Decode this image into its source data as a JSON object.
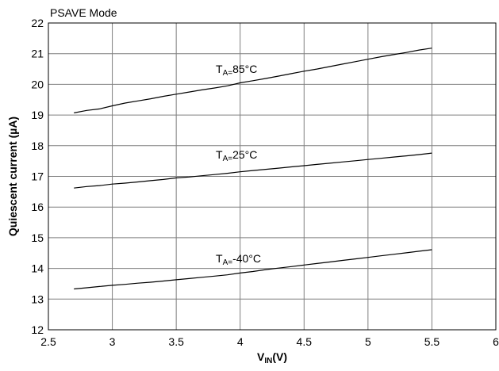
{
  "chart_data": {
    "type": "line",
    "title": "PSAVE Mode",
    "xlabel": {
      "main": "V",
      "sub": "IN",
      "rest": "(V)"
    },
    "ylabel": "Quiescent current (µA)",
    "xlim": [
      2.5,
      6
    ],
    "ylim": [
      12,
      22
    ],
    "x_ticks": [
      2.5,
      3,
      3.5,
      4,
      4.5,
      5,
      5.5,
      6
    ],
    "x_tick_labels": [
      "2.5",
      "3",
      "3.5",
      "4",
      "4.5",
      "5",
      "5.5",
      "6"
    ],
    "y_ticks": [
      12,
      13,
      14,
      15,
      16,
      17,
      18,
      19,
      20,
      21,
      22
    ],
    "y_tick_labels": [
      "12",
      "13",
      "14",
      "15",
      "16",
      "17",
      "18",
      "19",
      "20",
      "21",
      "22"
    ],
    "grid": true,
    "legend": "none",
    "line_color": "#000000",
    "grid_color": "#7f7f7f",
    "x": [
      2.7,
      2.8,
      2.9,
      3.0,
      3.1,
      3.2,
      3.3,
      3.4,
      3.5,
      3.6,
      3.7,
      3.8,
      3.9,
      4.0,
      4.1,
      4.2,
      4.3,
      4.4,
      4.5,
      4.6,
      4.7,
      4.8,
      4.9,
      5.0,
      5.1,
      5.2,
      5.3,
      5.4,
      5.5
    ],
    "series": [
      {
        "label_main": "T",
        "label_sub": "A=",
        "label_rest": "85°C",
        "values": [
          19.07,
          19.15,
          19.2,
          19.3,
          19.39,
          19.46,
          19.53,
          19.61,
          19.68,
          19.75,
          19.82,
          19.88,
          19.95,
          20.05,
          20.12,
          20.19,
          20.27,
          20.35,
          20.43,
          20.5,
          20.58,
          20.66,
          20.74,
          20.82,
          20.9,
          20.97,
          21.04,
          21.12,
          21.18
        ]
      },
      {
        "label_main": "T",
        "label_sub": "A=",
        "label_rest": "25°C",
        "values": [
          16.62,
          16.67,
          16.7,
          16.75,
          16.78,
          16.82,
          16.86,
          16.9,
          16.95,
          16.98,
          17.02,
          17.06,
          17.1,
          17.15,
          17.19,
          17.23,
          17.27,
          17.31,
          17.35,
          17.39,
          17.43,
          17.47,
          17.51,
          17.55,
          17.59,
          17.63,
          17.67,
          17.71,
          17.76
        ]
      },
      {
        "label_main": "T",
        "label_sub": "A=",
        "label_rest": "-40°C",
        "values": [
          13.33,
          13.37,
          13.41,
          13.45,
          13.48,
          13.52,
          13.55,
          13.59,
          13.63,
          13.67,
          13.71,
          13.75,
          13.79,
          13.85,
          13.9,
          13.96,
          14.01,
          14.06,
          14.11,
          14.16,
          14.21,
          14.26,
          14.31,
          14.36,
          14.41,
          14.46,
          14.51,
          14.56,
          14.61
        ]
      }
    ]
  }
}
